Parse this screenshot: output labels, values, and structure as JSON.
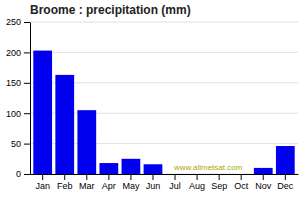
{
  "chart_data": {
    "type": "bar",
    "title": "Broome : precipitation (mm)",
    "categories": [
      "Jan",
      "Feb",
      "Mar",
      "Apr",
      "May",
      "Jun",
      "Jul",
      "Aug",
      "Sep",
      "Oct",
      "Nov",
      "Dec"
    ],
    "values": [
      203,
      163,
      105,
      18,
      25,
      16,
      0,
      0,
      0,
      0,
      10,
      46
    ],
    "color": "#0000ee",
    "ylim": [
      0,
      250
    ],
    "yticks": [
      0,
      50,
      100,
      150,
      200,
      250
    ],
    "grid": true,
    "annotations": [
      "www.allmetsat.com"
    ]
  }
}
